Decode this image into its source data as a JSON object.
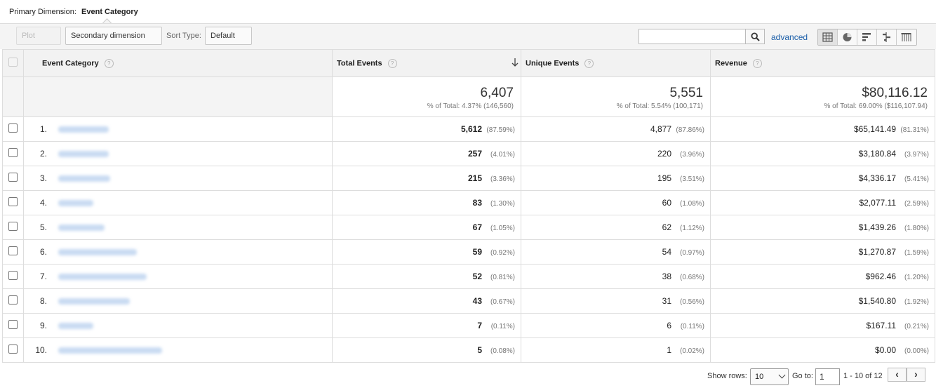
{
  "primary_dimension": {
    "label": "Primary Dimension:",
    "value": "Event Category"
  },
  "toolbar": {
    "plot_rows": "Plot Rows",
    "secondary_dimension": "Secondary dimension",
    "sort_type_label": "Sort Type:",
    "sort_type_value": "Default",
    "search_value": "",
    "advanced": "advanced",
    "views": [
      "data-table",
      "pie",
      "bar",
      "comparison",
      "pivot"
    ],
    "active_view": "data-table"
  },
  "columns": {
    "event_category": "Event Category",
    "total_events": "Total Events",
    "unique_events": "Unique Events",
    "revenue": "Revenue",
    "help": "?",
    "sorted_by": "Total Events",
    "sort_direction": "descending"
  },
  "totals": {
    "total_events": "6,407",
    "total_events_pct": "% of Total: 4.37% (146,560)",
    "unique_events": "5,551",
    "unique_events_pct": "% of Total: 5.54% (100,171)",
    "revenue": "$80,116.12",
    "revenue_pct": "% of Total: 69.00% ($116,107.94)"
  },
  "rows": [
    {
      "rank": "1.",
      "total": "5,612",
      "total_pct": "(87.59%)",
      "unique": "4,877",
      "unique_pct": "(87.86%)",
      "revenue": "$65,141.49",
      "revenue_pct": "(81.31%)"
    },
    {
      "rank": "2.",
      "total": "257",
      "total_pct": "(4.01%)",
      "unique": "220",
      "unique_pct": "(3.96%)",
      "revenue": "$3,180.84",
      "revenue_pct": "(3.97%)"
    },
    {
      "rank": "3.",
      "total": "215",
      "total_pct": "(3.36%)",
      "unique": "195",
      "unique_pct": "(3.51%)",
      "revenue": "$4,336.17",
      "revenue_pct": "(5.41%)"
    },
    {
      "rank": "4.",
      "total": "83",
      "total_pct": "(1.30%)",
      "unique": "60",
      "unique_pct": "(1.08%)",
      "revenue": "$2,077.11",
      "revenue_pct": "(2.59%)"
    },
    {
      "rank": "5.",
      "total": "67",
      "total_pct": "(1.05%)",
      "unique": "62",
      "unique_pct": "(1.12%)",
      "revenue": "$1,439.26",
      "revenue_pct": "(1.80%)"
    },
    {
      "rank": "6.",
      "total": "59",
      "total_pct": "(0.92%)",
      "unique": "54",
      "unique_pct": "(0.97%)",
      "revenue": "$1,270.87",
      "revenue_pct": "(1.59%)"
    },
    {
      "rank": "7.",
      "total": "52",
      "total_pct": "(0.81%)",
      "unique": "38",
      "unique_pct": "(0.68%)",
      "revenue": "$962.46",
      "revenue_pct": "(1.20%)"
    },
    {
      "rank": "8.",
      "total": "43",
      "total_pct": "(0.67%)",
      "unique": "31",
      "unique_pct": "(0.56%)",
      "revenue": "$1,540.80",
      "revenue_pct": "(1.92%)"
    },
    {
      "rank": "9.",
      "total": "7",
      "total_pct": "(0.11%)",
      "unique": "6",
      "unique_pct": "(0.11%)",
      "revenue": "$167.11",
      "revenue_pct": "(0.21%)"
    },
    {
      "rank": "10.",
      "total": "5",
      "total_pct": "(0.08%)",
      "unique": "1",
      "unique_pct": "(0.02%)",
      "revenue": "$0.00",
      "revenue_pct": "(0.00%)"
    }
  ],
  "pagination": {
    "show_rows_label": "Show rows:",
    "show_rows_value": "10",
    "goto_label": "Go to:",
    "goto_value": "1",
    "range": "1 - 10 of 12"
  },
  "colors": {
    "link": "#1a5ea9",
    "header_bg": "#f2f2f2",
    "border": "#dddddd",
    "blurred_text": "#c9dbf2"
  }
}
